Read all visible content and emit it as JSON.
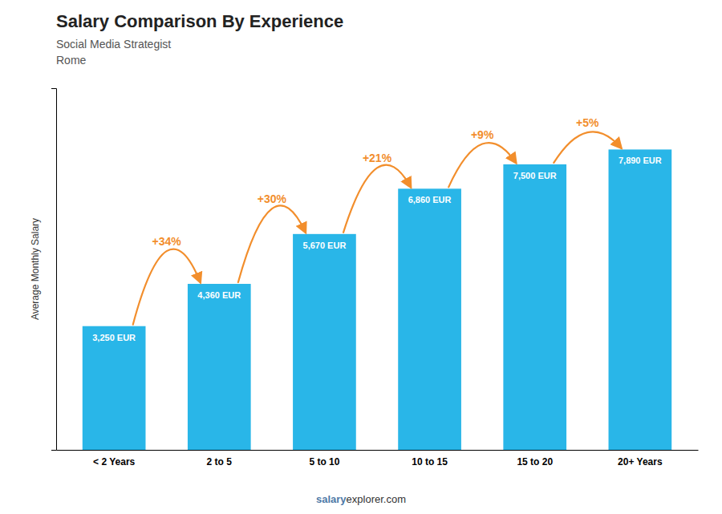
{
  "chart_data": {
    "type": "bar",
    "title": "Salary Comparison By Experience",
    "subtitle": [
      "Social Media Strategist",
      "Rome"
    ],
    "ylabel": "Average Monthly Salary",
    "categories": [
      "< 2 Years",
      "2 to 5",
      "5 to 10",
      "10 to 15",
      "15 to 20",
      "20+ Years"
    ],
    "values": [
      3250,
      4360,
      5670,
      6860,
      7500,
      7890
    ],
    "value_labels": [
      "3,250 EUR",
      "4,360 EUR",
      "5,670 EUR",
      "6,860 EUR",
      "7,500 EUR",
      "7,890 EUR"
    ],
    "data_labels": true,
    "color": "#29b6e8",
    "ylim": [
      0,
      9500
    ],
    "tick_labels": "x",
    "annotations": [
      "+34%",
      "+30%",
      "+21%",
      "+9%",
      "+5%"
    ],
    "footer": [
      "salary",
      "explorer.com"
    ]
  }
}
